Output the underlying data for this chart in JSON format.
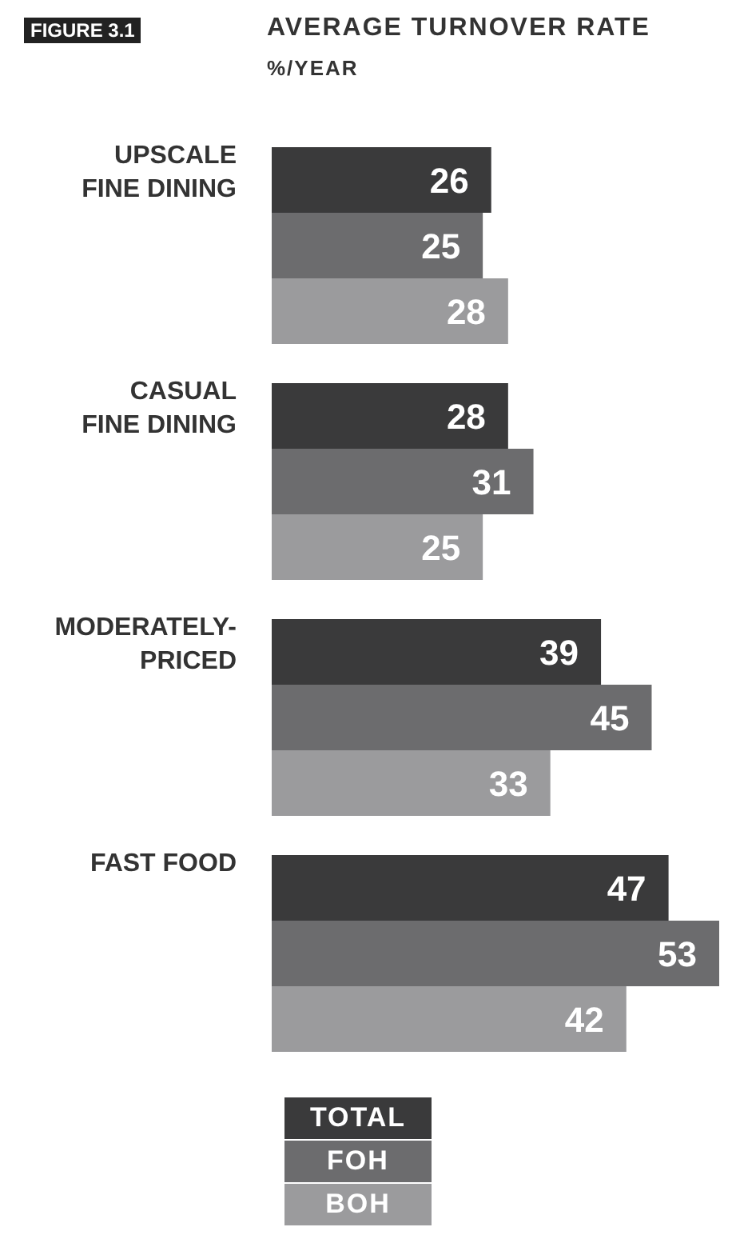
{
  "chart_data": {
    "type": "bar",
    "orientation": "horizontal",
    "title": "AVERAGE TURNOVER RATE",
    "subtitle": "%/YEAR",
    "annotations": [
      "FIGURE 3.1"
    ],
    "categories": [
      "UPSCALE FINE DINING",
      "CASUAL FINE DINING",
      "MODERATELY-PRICED",
      "FAST FOOD"
    ],
    "series": [
      {
        "name": "TOTAL",
        "color": "#3a3a3b",
        "values": [
          26,
          28,
          39,
          47
        ]
      },
      {
        "name": "FOH",
        "color": "#6c6c6e",
        "values": [
          25,
          31,
          45,
          53
        ]
      },
      {
        "name": "BOH",
        "color": "#9b9b9d",
        "values": [
          28,
          25,
          33,
          42
        ]
      }
    ],
    "data_labels": true,
    "legend": "bottom",
    "grid": false
  }
}
